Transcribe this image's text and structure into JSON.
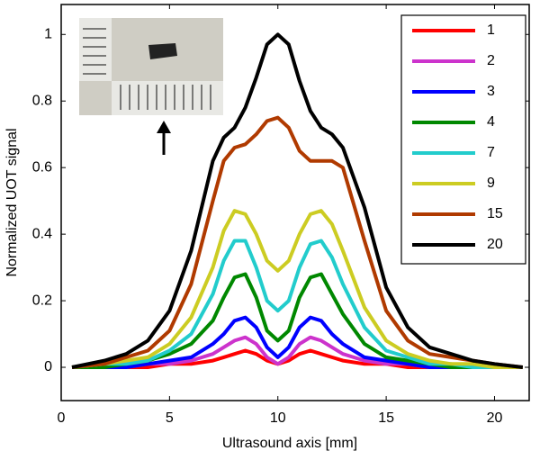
{
  "chart_data": {
    "type": "line",
    "xlabel": "Ultrasound axis [mm]",
    "ylabel": "Normalized UOT signal",
    "x": [
      0.5,
      2,
      3,
      4,
      5,
      6,
      7,
      7.5,
      8,
      8.5,
      9,
      9.5,
      10,
      10.5,
      11,
      11.5,
      12,
      12.5,
      13,
      14,
      15,
      16,
      17,
      18,
      19,
      20,
      21.3
    ],
    "xlim": [
      0,
      21.6
    ],
    "xticks": [
      0,
      5,
      10,
      15,
      20
    ],
    "ylim": [
      -0.1,
      1.09
    ],
    "yticks": [
      0,
      0.2,
      0.4,
      0.6,
      0.8,
      1
    ],
    "grid": false,
    "legend": "upper right",
    "series": [
      {
        "name": "1",
        "color": "#ff0000",
        "values": [
          0,
          0,
          0,
          0,
          0.01,
          0.01,
          0.02,
          0.03,
          0.04,
          0.05,
          0.04,
          0.02,
          0.01,
          0.02,
          0.04,
          0.05,
          0.04,
          0.03,
          0.02,
          0.01,
          0.01,
          0,
          0,
          0,
          0,
          0,
          0
        ]
      },
      {
        "name": "2",
        "color": "#cc33cc",
        "values": [
          0,
          0,
          0,
          0.01,
          0.01,
          0.02,
          0.04,
          0.06,
          0.08,
          0.09,
          0.07,
          0.03,
          0.01,
          0.03,
          0.07,
          0.09,
          0.08,
          0.06,
          0.04,
          0.02,
          0.01,
          0.01,
          0,
          0,
          0,
          0,
          0
        ]
      },
      {
        "name": "3",
        "color": "#0000ff",
        "values": [
          0,
          0,
          0,
          0.01,
          0.02,
          0.03,
          0.07,
          0.1,
          0.14,
          0.15,
          0.12,
          0.06,
          0.03,
          0.06,
          0.12,
          0.15,
          0.14,
          0.1,
          0.07,
          0.03,
          0.02,
          0.01,
          0,
          0,
          0,
          0,
          0
        ]
      },
      {
        "name": "4",
        "color": "#008800",
        "values": [
          0,
          0,
          0.01,
          0.02,
          0.04,
          0.07,
          0.14,
          0.21,
          0.27,
          0.28,
          0.21,
          0.11,
          0.08,
          0.11,
          0.21,
          0.27,
          0.28,
          0.22,
          0.16,
          0.07,
          0.03,
          0.02,
          0.01,
          0,
          0,
          0,
          0
        ]
      },
      {
        "name": "7",
        "color": "#22cccc",
        "values": [
          0,
          0.01,
          0.01,
          0.02,
          0.05,
          0.1,
          0.22,
          0.32,
          0.38,
          0.38,
          0.3,
          0.2,
          0.17,
          0.2,
          0.3,
          0.37,
          0.38,
          0.33,
          0.25,
          0.12,
          0.05,
          0.03,
          0.01,
          0.01,
          0,
          0,
          0
        ]
      },
      {
        "name": "9",
        "color": "#cccc22",
        "values": [
          0,
          0.01,
          0.02,
          0.03,
          0.07,
          0.15,
          0.3,
          0.41,
          0.47,
          0.46,
          0.4,
          0.32,
          0.29,
          0.32,
          0.4,
          0.46,
          0.47,
          0.43,
          0.35,
          0.18,
          0.08,
          0.04,
          0.02,
          0.01,
          0.01,
          0,
          0
        ]
      },
      {
        "name": "15",
        "color": "#b03a00",
        "values": [
          0,
          0.01,
          0.03,
          0.05,
          0.11,
          0.25,
          0.5,
          0.62,
          0.66,
          0.67,
          0.7,
          0.74,
          0.75,
          0.72,
          0.65,
          0.62,
          0.62,
          0.62,
          0.6,
          0.38,
          0.17,
          0.08,
          0.04,
          0.03,
          0.02,
          0.01,
          0
        ]
      },
      {
        "name": "20",
        "color": "#000000",
        "values": [
          0,
          0.02,
          0.04,
          0.08,
          0.17,
          0.35,
          0.62,
          0.69,
          0.72,
          0.78,
          0.87,
          0.97,
          1,
          0.97,
          0.86,
          0.77,
          0.72,
          0.7,
          0.66,
          0.48,
          0.24,
          0.12,
          0.06,
          0.04,
          0.02,
          0.01,
          0
        ]
      }
    ]
  }
}
